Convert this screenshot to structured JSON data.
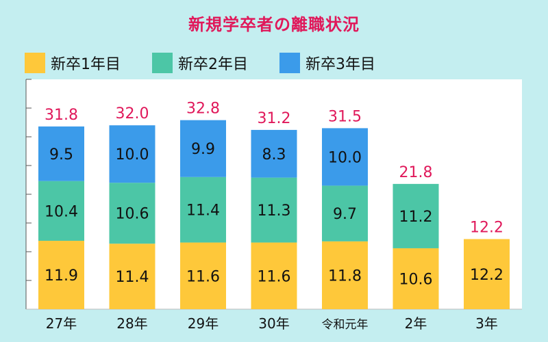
{
  "title": "新規学卒者の離職状況",
  "colors": {
    "background": "#c4eef0",
    "plot_bg": "#ffffff",
    "title": "#e0185a",
    "total_label": "#e0185a",
    "year1": "#fec83a",
    "year2": "#4cc6a6",
    "year3": "#3b9bea",
    "axis": "#555555"
  },
  "legend": [
    {
      "label": "新卒1年目",
      "color": "#fec83a"
    },
    {
      "label": "新卒2年目",
      "color": "#4cc6a6"
    },
    {
      "label": "新卒3年目",
      "color": "#3b9bea"
    }
  ],
  "chart_data": {
    "type": "bar",
    "stacked": true,
    "title": "新規学卒者の離職状況",
    "categories": [
      "27年",
      "28年",
      "29年",
      "30年",
      "令和元年",
      "2年",
      "3年"
    ],
    "series": [
      {
        "name": "新卒1年目",
        "values": [
          11.9,
          11.4,
          11.6,
          11.6,
          11.8,
          10.6,
          12.2
        ]
      },
      {
        "name": "新卒2年目",
        "values": [
          10.4,
          10.6,
          11.4,
          11.3,
          9.7,
          11.2,
          null
        ]
      },
      {
        "name": "新卒3年目",
        "values": [
          9.5,
          10.0,
          9.9,
          8.3,
          10.0,
          null,
          null
        ]
      }
    ],
    "data_labels": [
      [
        "11.9",
        "11.4",
        "11.6",
        "11.6",
        "11.8",
        "10.6",
        "12.2"
      ],
      [
        "10.4",
        "10.6",
        "11.4",
        "11.3",
        "9.7",
        "11.2",
        ""
      ],
      [
        "9.5",
        "10.0",
        "9.9",
        "8.3",
        "10.0",
        "",
        ""
      ]
    ],
    "totals": [
      "31.8",
      "32.0",
      "32.8",
      "31.2",
      "31.5",
      "21.8",
      "12.2"
    ],
    "ylim": [
      0,
      40
    ],
    "ytick_step": 5,
    "grid": false,
    "legend_position": "top-left"
  }
}
